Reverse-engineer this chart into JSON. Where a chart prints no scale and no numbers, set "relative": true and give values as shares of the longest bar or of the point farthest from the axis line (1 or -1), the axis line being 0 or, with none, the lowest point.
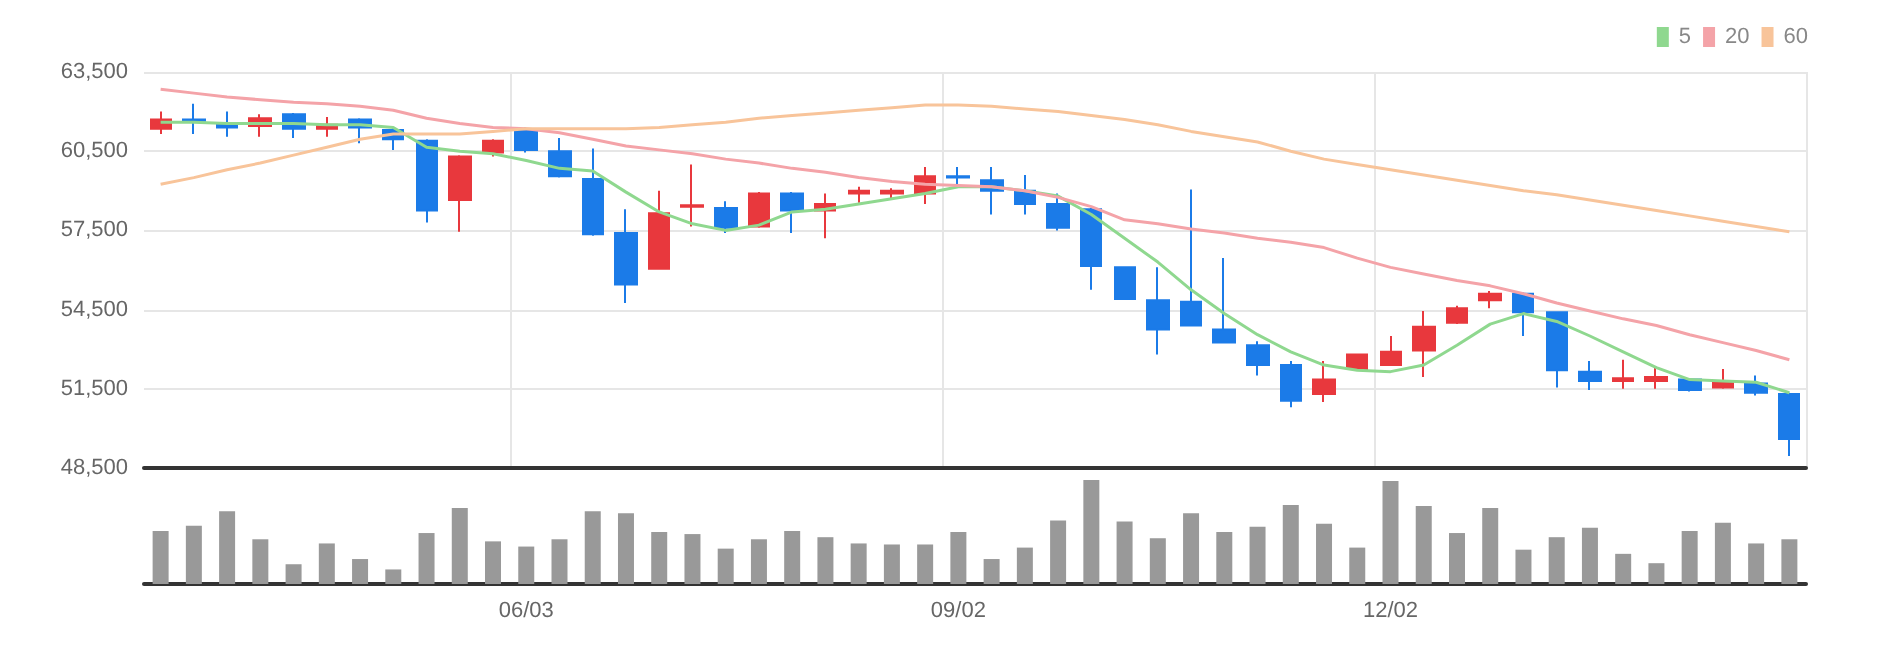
{
  "chart_data": [
    {
      "type": "candlestick",
      "categories": [
        null,
        null,
        null,
        null,
        null,
        null,
        null,
        null,
        null,
        null,
        null,
        null,
        null,
        null,
        null,
        null,
        null,
        null,
        null,
        null,
        null,
        null,
        null,
        null,
        null,
        null,
        null,
        null,
        null,
        null,
        null,
        null,
        null,
        null,
        null,
        null,
        null,
        null,
        null,
        null,
        null,
        null,
        null,
        null,
        null,
        null,
        null,
        null,
        null,
        null
      ],
      "ohlc": [
        [
          61350,
          62000,
          61150,
          61700
        ],
        [
          61700,
          62300,
          61150,
          61650
        ],
        [
          61500,
          62000,
          61050,
          61400
        ],
        [
          61450,
          61900,
          61050,
          61750
        ],
        [
          61900,
          61950,
          61000,
          61350
        ],
        [
          61350,
          61800,
          61050,
          61500
        ],
        [
          61700,
          61750,
          60800,
          61400
        ],
        [
          61300,
          61400,
          60550,
          60950
        ],
        [
          60900,
          60950,
          57800,
          58250
        ],
        [
          58650,
          60350,
          57450,
          60300
        ],
        [
          60450,
          60950,
          60300,
          60900
        ],
        [
          61300,
          61400,
          60450,
          60550
        ],
        [
          60500,
          61000,
          59500,
          59550
        ],
        [
          59450,
          60600,
          57300,
          57350
        ],
        [
          57400,
          58300,
          54750,
          55450
        ],
        [
          56050,
          59000,
          56050,
          58150
        ],
        [
          58400,
          60000,
          57650,
          58450
        ],
        [
          58350,
          58600,
          57400,
          57600
        ],
        [
          57650,
          58950,
          57600,
          58900
        ],
        [
          58900,
          58950,
          57400,
          58250
        ],
        [
          58250,
          58900,
          57200,
          58500
        ],
        [
          58900,
          59150,
          58550,
          59000
        ],
        [
          58900,
          59100,
          58650,
          59000
        ],
        [
          58900,
          59900,
          58500,
          59550
        ],
        [
          59550,
          59900,
          59150,
          59500
        ],
        [
          59400,
          59900,
          58100,
          59000
        ],
        [
          59000,
          59600,
          58100,
          58500
        ],
        [
          58500,
          58900,
          57500,
          57600
        ],
        [
          58300,
          58350,
          55250,
          56150
        ],
        [
          56100,
          56100,
          54900,
          54900
        ],
        [
          54850,
          56100,
          52800,
          53750
        ],
        [
          54800,
          59050,
          53900,
          53900
        ],
        [
          53750,
          56450,
          53250,
          53250
        ],
        [
          53150,
          53300,
          52000,
          52400
        ],
        [
          52400,
          52550,
          50800,
          51050
        ],
        [
          51300,
          52550,
          51000,
          51850
        ],
        [
          52250,
          52800,
          52250,
          52800
        ],
        [
          52400,
          53500,
          52400,
          52900
        ],
        [
          52950,
          54450,
          51950,
          53850
        ],
        [
          54000,
          54650,
          53950,
          54550
        ],
        [
          54850,
          55200,
          54550,
          55100
        ],
        [
          55100,
          55150,
          53500,
          54400
        ],
        [
          54400,
          54400,
          51550,
          52200
        ],
        [
          52150,
          52550,
          51450,
          51800
        ],
        [
          51800,
          52600,
          51500,
          51900
        ],
        [
          51800,
          52300,
          51500,
          51950
        ],
        [
          51850,
          51900,
          51400,
          51450
        ],
        [
          51550,
          52250,
          51500,
          51750
        ],
        [
          51700,
          52000,
          51250,
          51350
        ],
        [
          51300,
          51350,
          48950,
          49600
        ]
      ],
      "colors": [
        "#e8383d",
        "#1b7be8",
        "#1b7be8",
        "#e8383d",
        "#1b7be8",
        "#e8383d",
        "#1b7be8",
        "#1b7be8",
        "#1b7be8",
        "#e8383d",
        "#e8383d",
        "#1b7be8",
        "#1b7be8",
        "#1b7be8",
        "#1b7be8",
        "#e8383d",
        "#e8383d",
        "#1b7be8",
        "#e8383d",
        "#1b7be8",
        "#e8383d",
        "#e8383d",
        "#e8383d",
        "#e8383d",
        "#1b7be8",
        "#1b7be8",
        "#1b7be8",
        "#1b7be8",
        "#1b7be8",
        "#1b7be8",
        "#1b7be8",
        "#1b7be8",
        "#1b7be8",
        "#1b7be8",
        "#1b7be8",
        "#e8383d",
        "#e8383d",
        "#e8383d",
        "#e8383d",
        "#e8383d",
        "#e8383d",
        "#1b7be8",
        "#1b7be8",
        "#1b7be8",
        "#e8383d",
        "#e8383d",
        "#1b7be8",
        "#e8383d",
        "#1b7be8",
        "#1b7be8"
      ],
      "series": [
        {
          "name": "5",
          "type": "line",
          "color": "#8fd88f",
          "values": [
            61600,
            61600,
            61550,
            61550,
            61550,
            61500,
            61500,
            61400,
            60650,
            60500,
            60400,
            60150,
            59850,
            59750,
            58950,
            58200,
            57750,
            57500,
            57700,
            58200,
            58300,
            58500,
            58700,
            58900,
            59150,
            59150,
            59000,
            58800,
            58100,
            57200,
            56300,
            55250,
            54350,
            53550,
            52900,
            52400,
            52200,
            52150,
            52400,
            53150,
            53950,
            54350,
            54050,
            53500,
            52900,
            52300,
            51850,
            51800,
            51750,
            51350
          ]
        },
        {
          "name": "20",
          "type": "line",
          "color": "#f4a3a8",
          "values": [
            62850,
            62700,
            62550,
            62450,
            62350,
            62300,
            62200,
            62050,
            61750,
            61550,
            61400,
            61350,
            61200,
            60950,
            60700,
            60550,
            60400,
            60200,
            60050,
            59850,
            59700,
            59500,
            59350,
            59250,
            59200,
            59150,
            59000,
            58750,
            58400,
            57900,
            57750,
            57550,
            57400,
            57200,
            57050,
            56850,
            56450,
            56100,
            55850,
            55600,
            55400,
            55100,
            54750,
            54450,
            54150,
            53900,
            53550,
            53250,
            52950,
            52600
          ]
        },
        {
          "name": "60",
          "type": "line",
          "color": "#f8c49a",
          "values": [
            59250,
            59500,
            59800,
            60050,
            60350,
            60650,
            60950,
            61150,
            61150,
            61150,
            61250,
            61350,
            61350,
            61350,
            61350,
            61400,
            61500,
            61600,
            61750,
            61850,
            61950,
            62050,
            62150,
            62250,
            62250,
            62200,
            62100,
            62000,
            61850,
            61700,
            61500,
            61250,
            61050,
            60850,
            60500,
            60200,
            60000,
            59800,
            59600,
            59400,
            59200,
            59000,
            58850,
            58650,
            58450,
            58250,
            58050,
            57850,
            57650,
            57450
          ]
        }
      ],
      "ylim": [
        48500,
        63500
      ],
      "yticks": [
        {
          "value": 48500,
          "label": "48,500"
        },
        {
          "value": 51500,
          "label": "51,500"
        },
        {
          "value": 54500,
          "label": "54,500"
        },
        {
          "value": 57500,
          "label": "57,500"
        },
        {
          "value": 60500,
          "label": "60,500"
        },
        {
          "value": 63500,
          "label": "63,500"
        }
      ],
      "grid": true,
      "legend": "top right",
      "marker": "none",
      "tick_labels": "y"
    },
    {
      "type": "bar",
      "relative": true,
      "tick_labels": "x",
      "categories": [
        null,
        null,
        null,
        null,
        null,
        null,
        null,
        null,
        null,
        null,
        null,
        "06/03",
        null,
        null,
        null,
        null,
        null,
        null,
        null,
        null,
        null,
        null,
        null,
        null,
        "09/02",
        null,
        null,
        null,
        null,
        null,
        null,
        null,
        null,
        null,
        null,
        null,
        null,
        "12/02",
        null,
        null,
        null,
        null,
        null,
        null,
        null,
        null,
        null,
        null,
        null,
        null
      ],
      "series": [
        {
          "color": "#999999",
          "values": [
            0.51,
            0.56,
            0.7,
            0.43,
            0.19,
            0.39,
            0.24,
            0.14,
            0.49,
            0.73,
            0.41,
            0.36,
            0.43,
            0.7,
            0.68,
            0.5,
            0.48,
            0.34,
            0.43,
            0.51,
            0.45,
            0.39,
            0.38,
            0.38,
            0.5,
            0.24,
            0.35,
            0.61,
            1,
            0.6,
            0.44,
            0.68,
            0.5,
            0.55,
            0.76,
            0.58,
            0.35,
            0.99,
            0.75,
            0.49,
            0.73,
            0.33,
            0.45,
            0.54,
            0.29,
            0.2,
            0.51,
            0.59,
            0.39,
            0.43
          ]
        }
      ]
    }
  ]
}
